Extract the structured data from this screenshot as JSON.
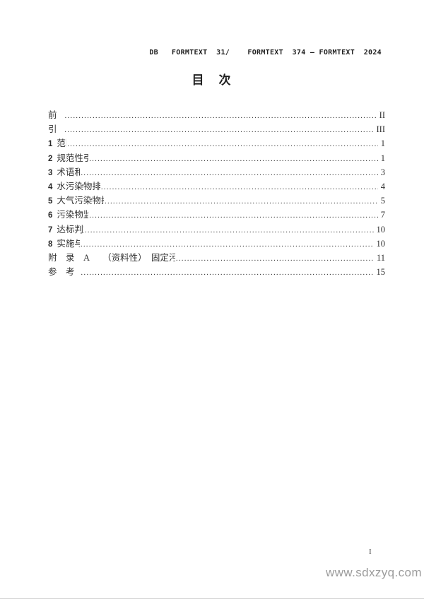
{
  "header": {
    "doc_code": "DB   FORMTEXT  31/    FORMTEXT  374 — FORMTEXT  2024"
  },
  "title": "目　次",
  "toc": {
    "entries": [
      {
        "num": "",
        "label": "前　 言",
        "page": "II"
      },
      {
        "num": "",
        "label": "引　 言",
        "page": "III"
      },
      {
        "num": "1",
        "label": "范围",
        "page": "1"
      },
      {
        "num": "2",
        "label": "规范性引用文件",
        "page": "1"
      },
      {
        "num": "3",
        "label": "术语和定义",
        "page": "3"
      },
      {
        "num": "4",
        "label": "水污染物排放控制要求",
        "page": "4"
      },
      {
        "num": "5",
        "label": "大气污染物排放控制要求",
        "page": "5"
      },
      {
        "num": "6",
        "label": "污染物监测要求",
        "page": "7"
      },
      {
        "num": "7",
        "label": "达标判定要求",
        "page": "10"
      },
      {
        "num": "8",
        "label": "实施与监督",
        "page": "10"
      },
      {
        "num": "",
        "label": "附　录　A　　（资料性）　固定污染源废气　含三甲苯的苯系物的测定　气袋采样-气相色谱法",
        "page": "11"
      },
      {
        "num": "",
        "label": "参　考　文　献",
        "page": "15"
      }
    ]
  },
  "footer": {
    "page_number": "I"
  },
  "watermark": "www.sdxzyq.com",
  "colors": {
    "text": "#2b2b2b",
    "watermark_gray": "#9b9b9b",
    "page_edge": "#d4d4d4"
  }
}
